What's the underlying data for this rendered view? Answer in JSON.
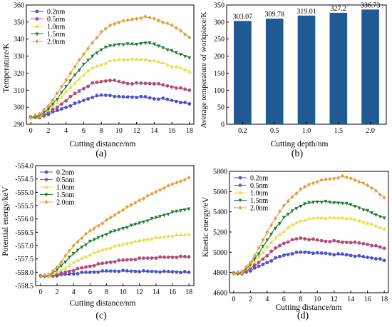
{
  "colors": {
    "s02": "#4a54c8",
    "s05": "#b24a7a",
    "s10": "#e6dc3a",
    "s15": "#1f7a2a",
    "s20": "#e0a040",
    "bar": "#1f5a94",
    "cap": "#000000"
  },
  "chart_data": [
    {
      "id": "a",
      "type": "line",
      "panel_label": "(a)",
      "xlabel": "Cutting distance/nm",
      "ylabel": "Temperature/K",
      "xlim": [
        -0.5,
        18.5
      ],
      "ylim": [
        290,
        360
      ],
      "xticks": [
        0,
        2,
        4,
        6,
        8,
        10,
        12,
        14,
        16,
        18
      ],
      "yticks": [
        290,
        300,
        310,
        320,
        330,
        340,
        350,
        360
      ],
      "legend": "top-left",
      "grid": false,
      "x": [
        0,
        1,
        2,
        3,
        4,
        5,
        6,
        7,
        8,
        9,
        10,
        11,
        12,
        13,
        14,
        15,
        16,
        17,
        18
      ],
      "series": [
        {
          "name": "0.2nm",
          "values": [
            294,
            294,
            296,
            298,
            300,
            302,
            304,
            306,
            307,
            307,
            306,
            306,
            306,
            306,
            305,
            305,
            304,
            303,
            302
          ]
        },
        {
          "name": "0.5nm",
          "values": [
            294,
            294,
            297,
            300,
            304,
            308,
            311,
            314,
            315,
            316,
            315,
            314,
            314,
            314,
            314,
            313,
            312,
            311,
            310
          ]
        },
        {
          "name": "1.0nm",
          "values": [
            294,
            295,
            298,
            303,
            309,
            314,
            319,
            323,
            325,
            327,
            328,
            328,
            328,
            328,
            327,
            326,
            324,
            323,
            321
          ]
        },
        {
          "name": "1.5nm",
          "values": [
            294,
            295,
            299,
            305,
            312,
            319,
            325,
            330,
            334,
            336,
            337,
            337,
            337,
            338,
            337,
            335,
            333,
            331,
            329
          ]
        },
        {
          "name": "2.0nm",
          "values": [
            294,
            296,
            301,
            308,
            316,
            324,
            331,
            338,
            344,
            348,
            350,
            351,
            352,
            353,
            352,
            350,
            348,
            345,
            341
          ]
        }
      ]
    },
    {
      "id": "b",
      "type": "bar",
      "panel_label": "(b)",
      "xlabel": "Cutting depth/nm",
      "ylabel": "Average temperature of workpiece/K",
      "categories": [
        "0.2",
        "0.5",
        "1.0",
        "1.5",
        "2.0"
      ],
      "values": [
        303.07,
        309.78,
        319.01,
        327.2,
        336.73
      ],
      "data_labels": [
        "303.07",
        "309.78",
        "319.01",
        "327.2",
        "336.73"
      ],
      "ylim": [
        0,
        350
      ],
      "yticks": [
        0,
        50,
        100,
        150,
        200,
        250,
        300,
        350
      ],
      "grid": false
    },
    {
      "id": "c",
      "type": "line",
      "panel_label": "(c)",
      "xlabel": "Cutting distance/nm",
      "ylabel": "Potential energy/keV",
      "xlim": [
        -0.6,
        18.6
      ],
      "ylim": [
        -558.5,
        -554.0
      ],
      "xticks": [
        0,
        2,
        4,
        6,
        8,
        10,
        12,
        14,
        16,
        18
      ],
      "ytick_labels": [
        "-554.0",
        "-554.5",
        "-555.0",
        "-555.5",
        "-556.0",
        "-556.5",
        "-557.0",
        "-557.5",
        "-558.0",
        "-558.5"
      ],
      "yticks": [
        -554.0,
        -554.5,
        -555.0,
        -555.5,
        -556.0,
        -556.5,
        -557.0,
        -557.5,
        -558.0,
        -558.5
      ],
      "legend": "top-left",
      "grid": false,
      "x": [
        0,
        1,
        2,
        3,
        4,
        5,
        6,
        7,
        8,
        9,
        10,
        11,
        12,
        13,
        14,
        15,
        16,
        17,
        18
      ],
      "series": [
        {
          "name": "0.2nm",
          "values": [
            -558.15,
            -558.15,
            -558.12,
            -558.08,
            -558.05,
            -558.02,
            -558.0,
            -557.98,
            -557.96,
            -557.95,
            -557.95,
            -557.96,
            -557.96,
            -557.97,
            -557.97,
            -557.98,
            -557.98,
            -557.99,
            -558.0
          ]
        },
        {
          "name": "0.5nm",
          "values": [
            -558.15,
            -558.15,
            -558.08,
            -558.0,
            -557.92,
            -557.84,
            -557.77,
            -557.7,
            -557.64,
            -557.59,
            -557.55,
            -557.52,
            -557.49,
            -557.47,
            -557.45,
            -557.44,
            -557.43,
            -557.42,
            -557.42
          ]
        },
        {
          "name": "1.0nm",
          "values": [
            -558.15,
            -558.14,
            -558.0,
            -557.84,
            -557.65,
            -557.48,
            -557.34,
            -557.22,
            -557.12,
            -557.03,
            -556.95,
            -556.88,
            -556.82,
            -556.76,
            -556.71,
            -556.67,
            -556.63,
            -556.6,
            -556.58
          ]
        },
        {
          "name": "1.5nm",
          "values": [
            -558.15,
            -558.12,
            -557.9,
            -557.6,
            -557.3,
            -557.05,
            -556.85,
            -556.7,
            -556.56,
            -556.45,
            -556.35,
            -556.25,
            -556.15,
            -556.05,
            -555.95,
            -555.85,
            -555.75,
            -555.68,
            -555.62
          ]
        },
        {
          "name": "2.0nm",
          "values": [
            -558.15,
            -558.1,
            -557.8,
            -557.4,
            -557.0,
            -556.7,
            -556.45,
            -556.25,
            -556.05,
            -555.85,
            -555.65,
            -555.48,
            -555.3,
            -555.14,
            -554.98,
            -554.83,
            -554.7,
            -554.58,
            -554.45
          ]
        }
      ]
    },
    {
      "id": "d",
      "type": "line",
      "panel_label": "(d)",
      "xlabel": "Cutting distance/nm",
      "ylabel": "Kinetic energy/eV",
      "xlim": [
        -0.5,
        18.5
      ],
      "ylim": [
        4600,
        5800
      ],
      "xticks": [
        0,
        2,
        4,
        6,
        8,
        10,
        12,
        14,
        16,
        18
      ],
      "yticks": [
        4600,
        4800,
        5000,
        5200,
        5400,
        5600,
        5800
      ],
      "legend": "top-left",
      "grid": false,
      "x": [
        0,
        1,
        2,
        3,
        4,
        5,
        6,
        7,
        8,
        9,
        10,
        11,
        12,
        13,
        14,
        15,
        16,
        17,
        18
      ],
      "series": [
        {
          "name": "0.2nm",
          "values": [
            4790,
            4790,
            4820,
            4860,
            4900,
            4940,
            4970,
            4990,
            5000,
            5000,
            4990,
            4990,
            4980,
            4980,
            4970,
            4960,
            4950,
            4940,
            4920
          ]
        },
        {
          "name": "0.5nm",
          "values": [
            4790,
            4790,
            4840,
            4900,
            4970,
            5040,
            5090,
            5120,
            5140,
            5130,
            5120,
            5110,
            5110,
            5100,
            5100,
            5090,
            5080,
            5060,
            5040
          ]
        },
        {
          "name": "1.0nm",
          "values": [
            4790,
            4800,
            4860,
            4950,
            5050,
            5140,
            5210,
            5270,
            5310,
            5330,
            5340,
            5340,
            5340,
            5340,
            5330,
            5310,
            5290,
            5260,
            5230
          ]
        },
        {
          "name": "1.5nm",
          "values": [
            4790,
            4800,
            4880,
            4990,
            5120,
            5240,
            5340,
            5410,
            5460,
            5490,
            5500,
            5500,
            5490,
            5490,
            5470,
            5440,
            5410,
            5370,
            5340
          ]
        },
        {
          "name": "2.0nm",
          "values": [
            4790,
            4810,
            4900,
            5040,
            5200,
            5340,
            5460,
            5550,
            5620,
            5670,
            5700,
            5720,
            5730,
            5750,
            5730,
            5700,
            5660,
            5610,
            5540
          ]
        }
      ]
    }
  ]
}
